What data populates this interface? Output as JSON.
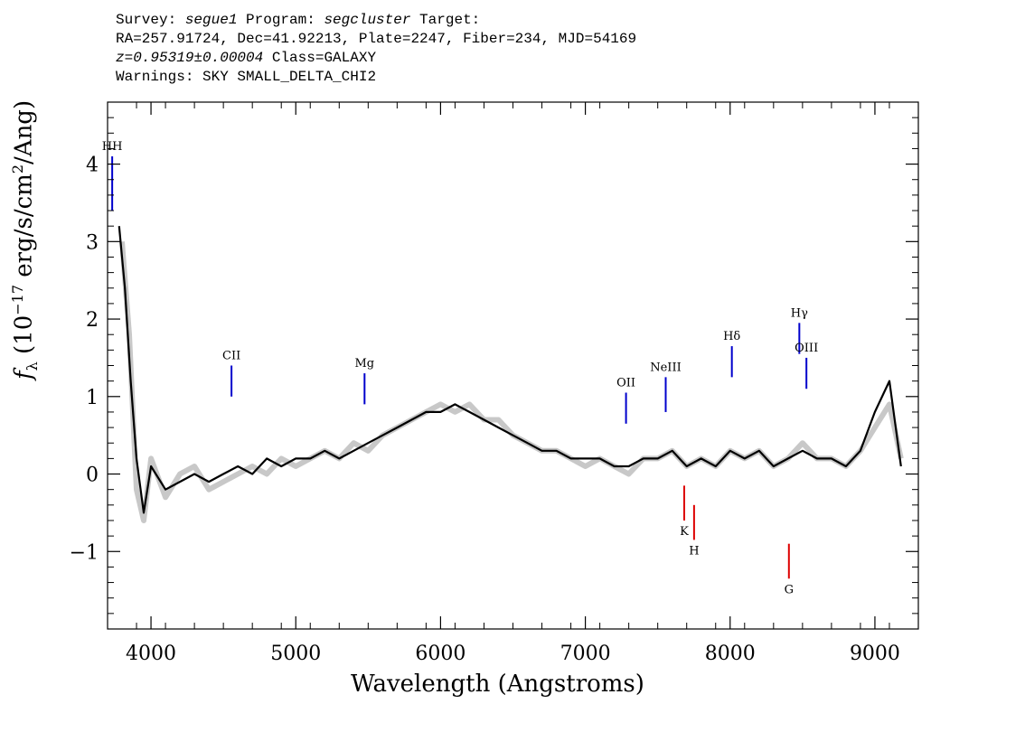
{
  "header": {
    "line1": {
      "survey_label": "Survey: ",
      "survey": "segue1",
      "program_label": " Program: ",
      "program": "segcluster",
      "target_label": " Target:"
    },
    "line2": "RA=257.91724, Dec=41.92213, Plate=2247, Fiber=234, MJD=54169",
    "line3": {
      "redshift": "z=0.95319±0.00004",
      "class": " Class=GALAXY"
    },
    "line4": "Warnings: SKY SMALL_DELTA_CHI2"
  },
  "chart_data": {
    "type": "line",
    "xlabel": "Wavelength (Angstroms)",
    "ylabel_parts": {
      "f": "f",
      "sub": "λ",
      "a": " (10",
      "sup1": "−17",
      "b": " erg/s/cm",
      "sup2": "2",
      "c": "/Ang)"
    },
    "xlim": [
      3700,
      9300
    ],
    "ylim": [
      -2,
      4.8
    ],
    "x_ticks": [
      "4000",
      "5000",
      "6000",
      "7000",
      "8000",
      "9000"
    ],
    "y_ticks": [
      "−1",
      "0",
      "1",
      "2",
      "3",
      "4"
    ],
    "series": [
      {
        "role": "raw",
        "color": "#c8c8c8",
        "x": [
          3800,
          3850,
          3900,
          3950,
          4000,
          4100,
          4200,
          4300,
          4400,
          4500,
          4600,
          4700,
          4800,
          4900,
          5000,
          5100,
          5200,
          5300,
          5400,
          5500,
          5600,
          5700,
          5800,
          5900,
          6000,
          6100,
          6200,
          6300,
          6400,
          6500,
          6600,
          6700,
          6800,
          6900,
          7000,
          7100,
          7200,
          7300,
          7400,
          7500,
          7600,
          7700,
          7800,
          7900,
          8000,
          8100,
          8200,
          8300,
          8400,
          8500,
          8600,
          8700,
          8800,
          8900,
          9000,
          9100,
          9180
        ],
        "y": [
          3.0,
          1.8,
          -0.2,
          -0.6,
          0.2,
          -0.3,
          0.0,
          0.1,
          -0.2,
          -0.1,
          0.0,
          0.1,
          0.0,
          0.2,
          0.1,
          0.2,
          0.3,
          0.2,
          0.4,
          0.3,
          0.5,
          0.6,
          0.7,
          0.8,
          0.9,
          0.8,
          0.9,
          0.7,
          0.7,
          0.5,
          0.4,
          0.3,
          0.3,
          0.2,
          0.1,
          0.2,
          0.1,
          0.0,
          0.2,
          0.2,
          0.3,
          0.1,
          0.2,
          0.1,
          0.3,
          0.2,
          0.3,
          0.1,
          0.2,
          0.4,
          0.2,
          0.2,
          0.1,
          0.3,
          0.6,
          0.9,
          0.2
        ]
      },
      {
        "role": "smoothed",
        "color": "#000000",
        "x": [
          3780,
          3820,
          3860,
          3900,
          3950,
          4000,
          4100,
          4200,
          4300,
          4400,
          4500,
          4600,
          4700,
          4800,
          4900,
          5000,
          5100,
          5200,
          5300,
          5400,
          5500,
          5600,
          5700,
          5800,
          5900,
          6000,
          6100,
          6200,
          6300,
          6400,
          6500,
          6600,
          6700,
          6800,
          6900,
          7000,
          7100,
          7200,
          7300,
          7400,
          7500,
          7600,
          7700,
          7800,
          7900,
          8000,
          8100,
          8200,
          8300,
          8400,
          8500,
          8600,
          8700,
          8800,
          8900,
          9000,
          9100,
          9180
        ],
        "y": [
          3.2,
          2.4,
          1.2,
          0.2,
          -0.5,
          0.1,
          -0.2,
          -0.1,
          0.0,
          -0.1,
          0.0,
          0.1,
          0.0,
          0.2,
          0.1,
          0.2,
          0.2,
          0.3,
          0.2,
          0.3,
          0.4,
          0.5,
          0.6,
          0.7,
          0.8,
          0.8,
          0.9,
          0.8,
          0.7,
          0.6,
          0.5,
          0.4,
          0.3,
          0.3,
          0.2,
          0.2,
          0.2,
          0.1,
          0.1,
          0.2,
          0.2,
          0.3,
          0.1,
          0.2,
          0.1,
          0.3,
          0.2,
          0.3,
          0.1,
          0.2,
          0.3,
          0.2,
          0.2,
          0.1,
          0.3,
          0.8,
          1.2,
          0.1
        ]
      }
    ],
    "lines": [
      {
        "label": "HH",
        "x": 3732,
        "y0": 3.4,
        "y1": 4.1,
        "color": "#0000cc"
      },
      {
        "label": "CII",
        "x": 4556,
        "y0": 1.0,
        "y1": 1.4,
        "color": "#0000cc"
      },
      {
        "label": "Mg",
        "x": 5475,
        "y0": 0.9,
        "y1": 1.3,
        "color": "#0000cc"
      },
      {
        "label": "OII",
        "x": 7281,
        "y0": 0.65,
        "y1": 1.05,
        "color": "#0000cc"
      },
      {
        "label": "NeIII",
        "x": 7555,
        "y0": 0.8,
        "y1": 1.25,
        "color": "#0000cc"
      },
      {
        "label": "Hδ",
        "x": 8012,
        "y0": 1.25,
        "y1": 1.65,
        "color": "#0000cc"
      },
      {
        "label": "Hγ",
        "x": 8478,
        "y0": 1.55,
        "y1": 1.95,
        "color": "#0000cc"
      },
      {
        "label": "OIII",
        "x": 8527,
        "y0": 1.1,
        "y1": 1.5,
        "color": "#0000cc"
      },
      {
        "label": "K",
        "x": 7683,
        "y0": -0.15,
        "y1": -0.6,
        "color": "#dd0000"
      },
      {
        "label": "H",
        "x": 7751,
        "y0": -0.4,
        "y1": -0.85,
        "color": "#dd0000"
      },
      {
        "label": "G",
        "x": 8406,
        "y0": -0.9,
        "y1": -1.35,
        "color": "#dd0000"
      }
    ]
  }
}
